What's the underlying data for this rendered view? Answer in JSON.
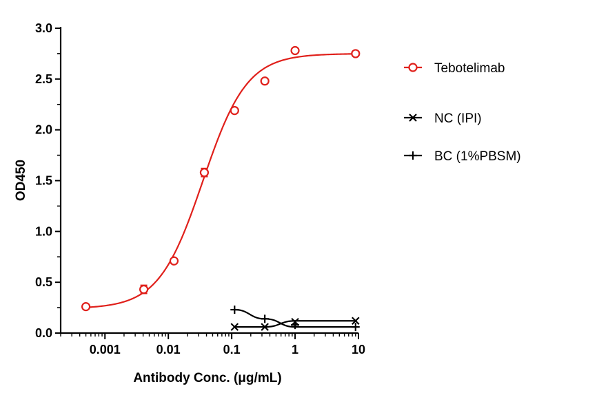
{
  "chart_data": {
    "type": "scatter",
    "title": "",
    "xlabel": "Antibody Conc. (μg/mL)",
    "ylabel": "OD450",
    "x_scale": "log",
    "xlim": [
      0.0002,
      10
    ],
    "ylim": [
      0,
      3.0
    ],
    "x_ticks": [
      0.001,
      0.01,
      0.1,
      1,
      10
    ],
    "x_tick_labels": [
      "0.001",
      "0.01",
      "0.1",
      "1",
      "10"
    ],
    "y_ticks": [
      0,
      0.5,
      1.0,
      1.5,
      2.0,
      2.5,
      3.0
    ],
    "y_tick_labels": [
      "0.0",
      "0.5",
      "1.0",
      "1.5",
      "2.0",
      "2.5",
      "3.0"
    ],
    "legend_position": "right",
    "grid": false,
    "series": [
      {
        "name": "Tebotelimab",
        "color": "#e0201b",
        "marker": "circle",
        "x": [
          0.0005,
          0.0041,
          0.0123,
          0.037,
          0.111,
          0.333,
          1,
          9
        ],
        "y": [
          0.26,
          0.43,
          0.71,
          1.58,
          2.19,
          2.48,
          2.78,
          2.75
        ],
        "error": [
          0,
          0.04,
          0,
          0.04,
          0,
          0,
          0,
          0
        ],
        "fit": {
          "bottom": 0.24,
          "top": 2.75,
          "ec50": 0.035,
          "hill": 1.25
        }
      },
      {
        "name": "NC (IPI)",
        "color": "#000000",
        "marker": "x",
        "x": [
          0.111,
          0.333,
          1,
          9
        ],
        "y": [
          0.06,
          0.06,
          0.11,
          0.12
        ],
        "curve_y": [
          0.06,
          0.06,
          0.12,
          0.12
        ]
      },
      {
        "name": "BC (1%PBSM)",
        "color": "#000000",
        "marker": "plus",
        "x": [
          0.111,
          0.333,
          1,
          9
        ],
        "y": [
          0.23,
          0.14,
          0.08,
          0.06
        ],
        "curve_y": [
          0.23,
          0.14,
          0.06,
          0.06
        ]
      }
    ]
  }
}
